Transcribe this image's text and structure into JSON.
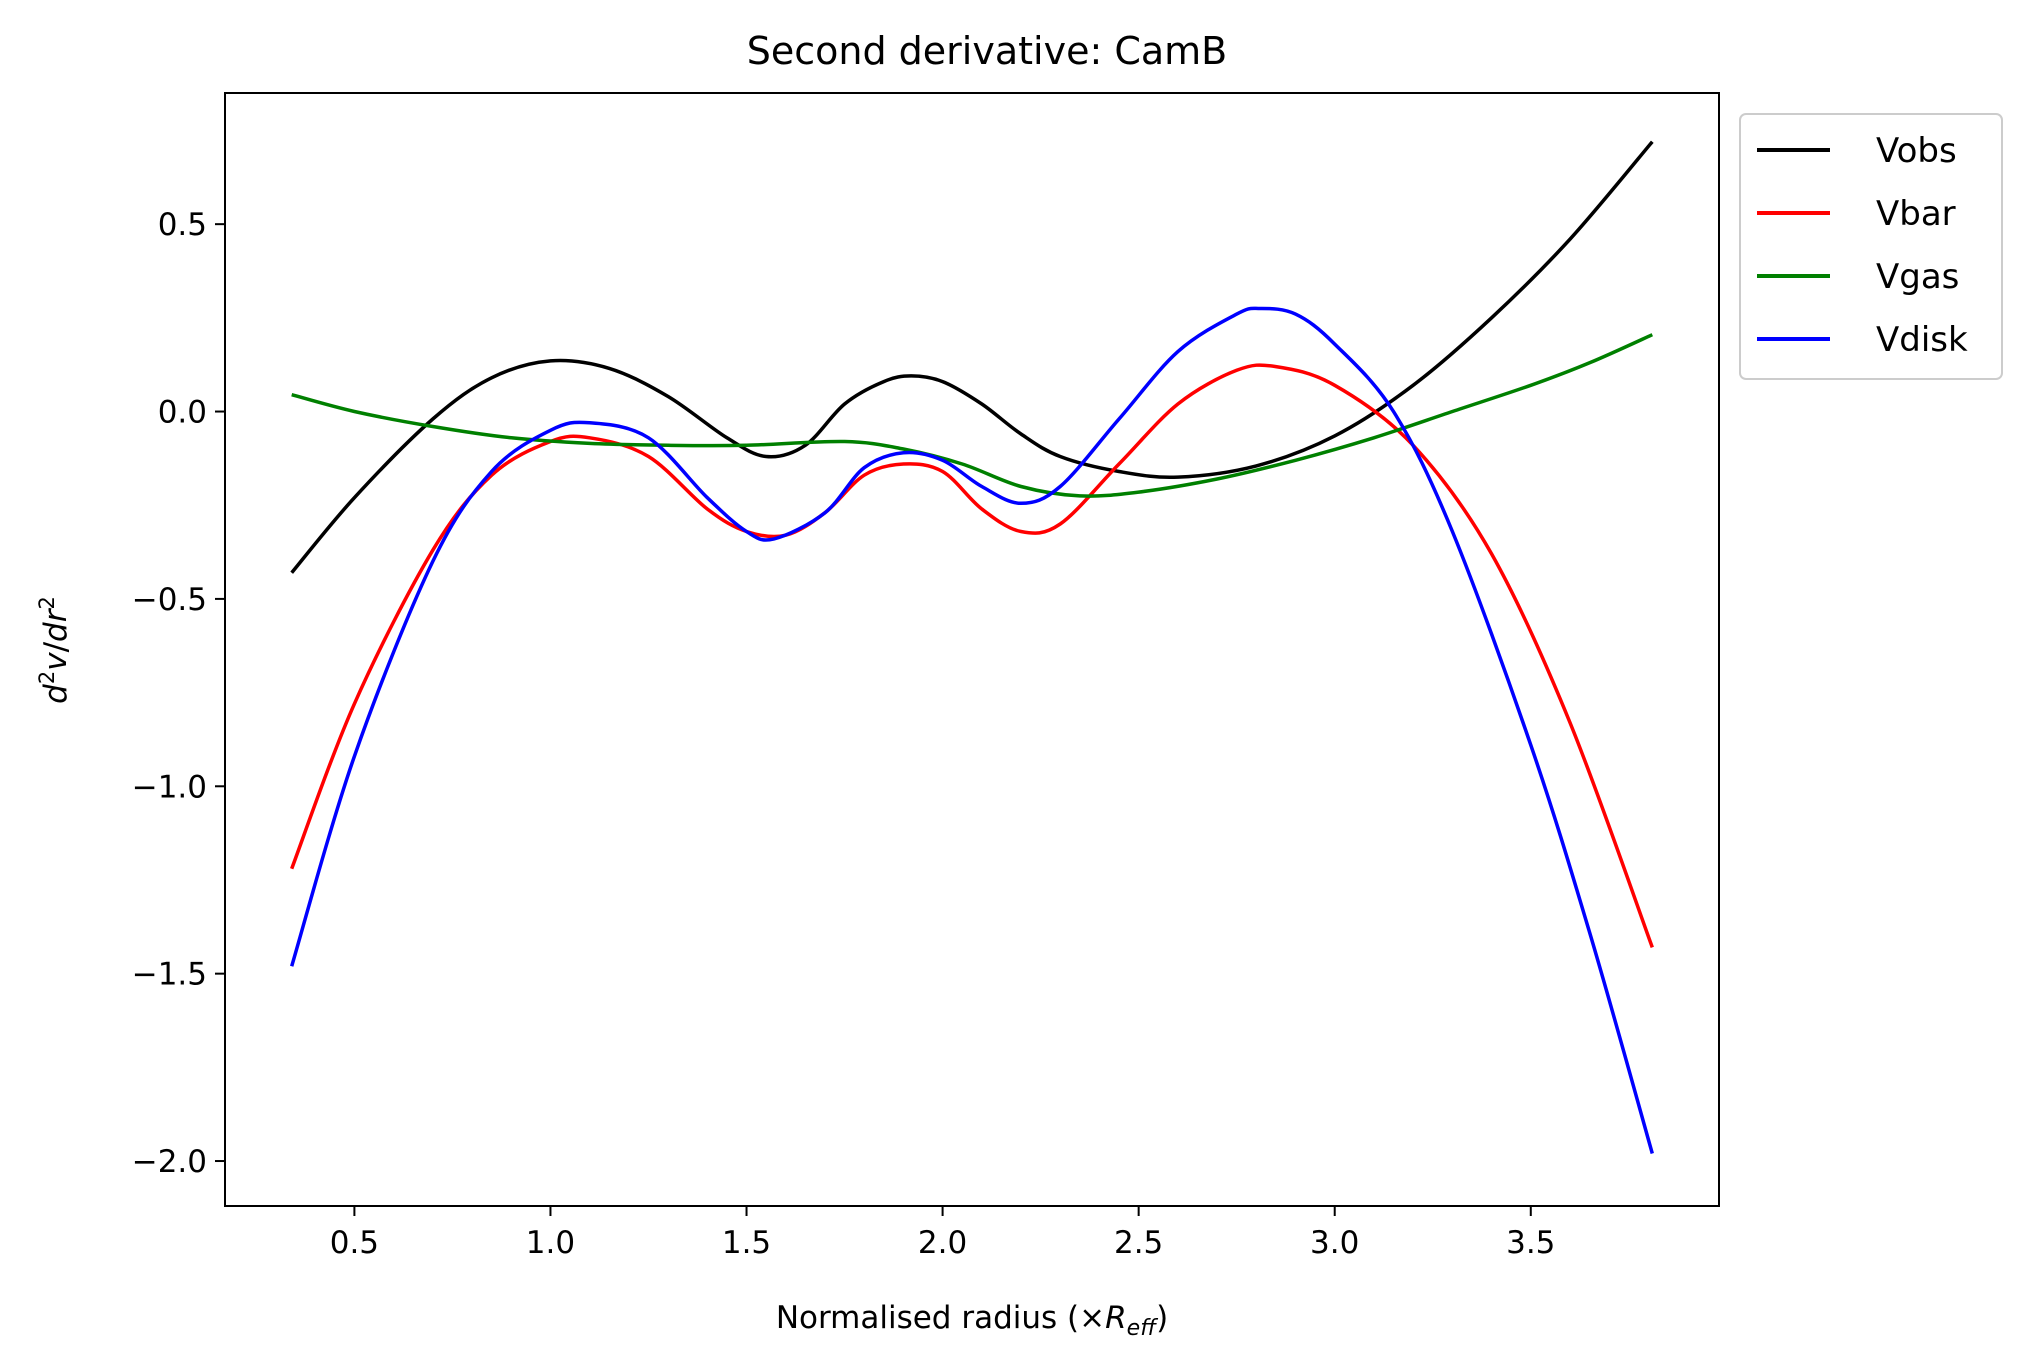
{
  "chart_data": {
    "type": "line",
    "title": "Second derivative: CamB",
    "xlabel": "Normalised radius (×R_eff)",
    "ylabel": "d²v/dr²",
    "xlim": [
      0.17,
      3.98
    ],
    "ylim": [
      -2.12,
      0.85
    ],
    "xticks": [
      0.5,
      1.0,
      1.5,
      2.0,
      2.5,
      3.0,
      3.5
    ],
    "yticks": [
      -2.0,
      -1.5,
      -1.0,
      -0.5,
      0.0,
      0.5
    ],
    "xtick_labels": [
      "0.5",
      "1.0",
      "1.5",
      "2.0",
      "2.5",
      "3.0",
      "3.5"
    ],
    "ytick_labels": [
      "−2.0",
      "−1.5",
      "−1.0",
      "−0.5",
      "0.0",
      "0.5"
    ],
    "grid": false,
    "legend_position": "outside-top-right",
    "series": [
      {
        "name": "Vobs",
        "color": "#000000",
        "points": [
          [
            0.34,
            -0.43
          ],
          [
            0.5,
            -0.23
          ],
          [
            0.7,
            -0.02
          ],
          [
            0.85,
            0.09
          ],
          [
            1.0,
            0.135
          ],
          [
            1.15,
            0.115
          ],
          [
            1.3,
            0.04
          ],
          [
            1.45,
            -0.07
          ],
          [
            1.55,
            -0.12
          ],
          [
            1.65,
            -0.09
          ],
          [
            1.75,
            0.02
          ],
          [
            1.85,
            0.08
          ],
          [
            1.92,
            0.095
          ],
          [
            2.0,
            0.08
          ],
          [
            2.1,
            0.02
          ],
          [
            2.2,
            -0.06
          ],
          [
            2.3,
            -0.12
          ],
          [
            2.45,
            -0.16
          ],
          [
            2.6,
            -0.175
          ],
          [
            2.8,
            -0.145
          ],
          [
            3.0,
            -0.065
          ],
          [
            3.2,
            0.07
          ],
          [
            3.4,
            0.25
          ],
          [
            3.6,
            0.46
          ],
          [
            3.81,
            0.72
          ]
        ]
      },
      {
        "name": "Vbar",
        "color": "#ff0000",
        "points": [
          [
            0.34,
            -1.22
          ],
          [
            0.5,
            -0.78
          ],
          [
            0.7,
            -0.37
          ],
          [
            0.85,
            -0.17
          ],
          [
            1.0,
            -0.08
          ],
          [
            1.1,
            -0.07
          ],
          [
            1.25,
            -0.12
          ],
          [
            1.4,
            -0.26
          ],
          [
            1.5,
            -0.32
          ],
          [
            1.6,
            -0.33
          ],
          [
            1.7,
            -0.27
          ],
          [
            1.8,
            -0.17
          ],
          [
            1.9,
            -0.14
          ],
          [
            2.0,
            -0.16
          ],
          [
            2.1,
            -0.26
          ],
          [
            2.2,
            -0.32
          ],
          [
            2.3,
            -0.3
          ],
          [
            2.45,
            -0.14
          ],
          [
            2.6,
            0.02
          ],
          [
            2.75,
            0.11
          ],
          [
            2.85,
            0.12
          ],
          [
            3.0,
            0.07
          ],
          [
            3.2,
            -0.09
          ],
          [
            3.4,
            -0.38
          ],
          [
            3.6,
            -0.83
          ],
          [
            3.81,
            -1.43
          ]
        ]
      },
      {
        "name": "Vgas",
        "color": "#008000",
        "points": [
          [
            0.34,
            0.045
          ],
          [
            0.5,
            0.0
          ],
          [
            0.7,
            -0.04
          ],
          [
            0.9,
            -0.07
          ],
          [
            1.1,
            -0.085
          ],
          [
            1.3,
            -0.09
          ],
          [
            1.5,
            -0.09
          ],
          [
            1.75,
            -0.08
          ],
          [
            1.9,
            -0.1
          ],
          [
            2.05,
            -0.14
          ],
          [
            2.2,
            -0.2
          ],
          [
            2.35,
            -0.225
          ],
          [
            2.5,
            -0.215
          ],
          [
            2.7,
            -0.18
          ],
          [
            2.9,
            -0.13
          ],
          [
            3.1,
            -0.07
          ],
          [
            3.3,
            0.0
          ],
          [
            3.5,
            0.07
          ],
          [
            3.65,
            0.13
          ],
          [
            3.81,
            0.205
          ]
        ]
      },
      {
        "name": "Vdisk",
        "color": "#0000ff",
        "points": [
          [
            0.34,
            -1.48
          ],
          [
            0.5,
            -0.92
          ],
          [
            0.7,
            -0.4
          ],
          [
            0.85,
            -0.16
          ],
          [
            1.0,
            -0.05
          ],
          [
            1.1,
            -0.03
          ],
          [
            1.25,
            -0.07
          ],
          [
            1.4,
            -0.23
          ],
          [
            1.5,
            -0.32
          ],
          [
            1.57,
            -0.34
          ],
          [
            1.7,
            -0.27
          ],
          [
            1.8,
            -0.15
          ],
          [
            1.9,
            -0.11
          ],
          [
            2.0,
            -0.13
          ],
          [
            2.1,
            -0.2
          ],
          [
            2.2,
            -0.245
          ],
          [
            2.3,
            -0.2
          ],
          [
            2.45,
            -0.02
          ],
          [
            2.6,
            0.16
          ],
          [
            2.75,
            0.26
          ],
          [
            2.81,
            0.275
          ],
          [
            2.9,
            0.26
          ],
          [
            3.0,
            0.18
          ],
          [
            3.15,
            0.0
          ],
          [
            3.3,
            -0.32
          ],
          [
            3.5,
            -0.89
          ],
          [
            3.65,
            -1.39
          ],
          [
            3.81,
            -1.98
          ]
        ]
      }
    ]
  }
}
